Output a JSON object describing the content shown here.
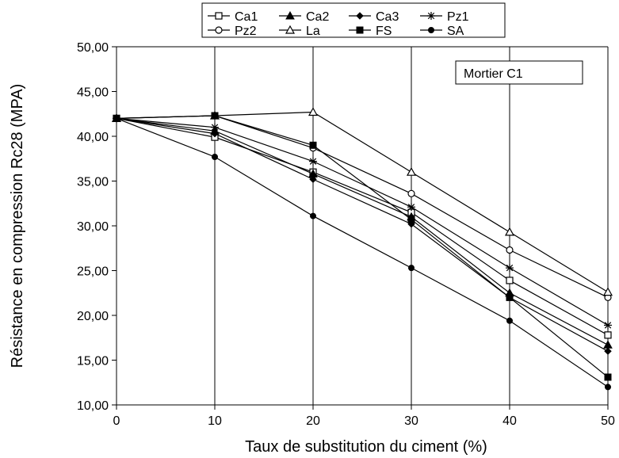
{
  "chart_data": {
    "type": "line",
    "title": "",
    "xlabel": "Taux de substitution du ciment (%)",
    "ylabel": "Résistance en compression Rc28 (MPA)",
    "x": [
      0,
      10,
      20,
      30,
      40,
      50
    ],
    "x_ticks": [
      "0",
      "10",
      "20",
      "30",
      "40",
      "50"
    ],
    "y_ticks": [
      "10,00",
      "15,00",
      "20,00",
      "25,00",
      "30,00",
      "35,00",
      "40,00",
      "45,00",
      "50,00"
    ],
    "xlim": [
      0,
      50
    ],
    "ylim": [
      10,
      50
    ],
    "grid": "vertical",
    "legend_position": "top",
    "annotation": "Mortier C1",
    "series": [
      {
        "name": "Ca1",
        "marker": "square-open",
        "values": [
          42.0,
          39.9,
          36.0,
          31.5,
          23.9,
          17.8
        ]
      },
      {
        "name": "Ca2",
        "marker": "triangle-filled",
        "values": [
          42.0,
          40.6,
          35.8,
          31.0,
          22.5,
          16.7
        ]
      },
      {
        "name": "Ca3",
        "marker": "diamond-filled",
        "values": [
          42.0,
          40.3,
          35.2,
          30.2,
          22.0,
          16.0
        ]
      },
      {
        "name": "Pz1",
        "marker": "star",
        "values": [
          42.0,
          41.0,
          37.2,
          32.1,
          25.3,
          18.9
        ]
      },
      {
        "name": "Pz2",
        "marker": "circle-open",
        "values": [
          42.0,
          42.3,
          38.7,
          33.6,
          27.3,
          22.0
        ]
      },
      {
        "name": "La",
        "marker": "triangle-open",
        "values": [
          42.0,
          42.3,
          42.7,
          36.0,
          29.3,
          22.6
        ]
      },
      {
        "name": "FS",
        "marker": "square-filled",
        "values": [
          42.0,
          42.3,
          39.0,
          30.7,
          22.0,
          13.1
        ]
      },
      {
        "name": "SA",
        "marker": "circle-filled",
        "values": [
          42.0,
          37.7,
          31.1,
          25.3,
          19.4,
          12.0
        ]
      }
    ]
  },
  "colors": {
    "line": "#000000",
    "grid": "#000000",
    "background": "#ffffff"
  }
}
